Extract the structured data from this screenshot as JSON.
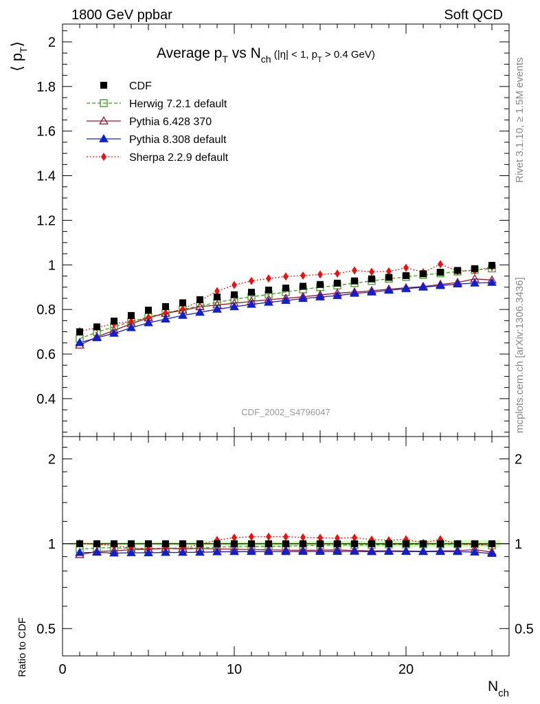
{
  "header": {
    "left": "1800 GeV ppbar",
    "right": "Soft QCD"
  },
  "side_labels": {
    "rivet": "Rivet 3.1.10, ≥ 1.5M events",
    "mcplots": "mcplots.cern.ch [arXiv:1306.3436]"
  },
  "chart_data": {
    "type": "line",
    "title": {
      "main": "Average p",
      "main_sub": "T",
      "vs": " vs N",
      "vs_sub": "ch",
      "cut_a": " (|η| < 1, p",
      "cut_sub": "T",
      "cut_b": " > 0.4 GeV)"
    },
    "analysis_label": "CDF_2002_S4796047",
    "top_panel": {
      "ylabel": "⟨ p",
      "ylabel_sub": "T",
      "ylabel_end": "⟩",
      "ylim": [
        0.23,
        2.08
      ],
      "yticks": [
        "0.4",
        "0.6",
        "0.8",
        "1",
        "1.2",
        "1.4",
        "1.6",
        "1.8",
        "2"
      ],
      "ytick_values": [
        0.4,
        0.6,
        0.8,
        1.0,
        1.2,
        1.4,
        1.6,
        1.8,
        2.0
      ]
    },
    "ratio_panel": {
      "ylabel": "Ratio to CDF",
      "ylim_log": [
        0.4,
        2.4
      ],
      "yticks": [
        "0.5",
        "1",
        "2"
      ],
      "ytick_values": [
        0.5,
        1.0,
        2.0
      ]
    },
    "x": {
      "label": "N",
      "label_sub": "ch",
      "xlim": [
        0,
        26
      ],
      "xticks": [
        "0",
        "10",
        "20"
      ],
      "xtick_values": [
        0,
        10,
        20
      ]
    },
    "x_values": [
      1,
      2,
      3,
      4,
      5,
      6,
      7,
      8,
      9,
      10,
      11,
      12,
      13,
      14,
      15,
      16,
      17,
      18,
      19,
      20,
      21,
      22,
      23,
      24,
      25
    ],
    "series": [
      {
        "name": "CDF",
        "style": "data",
        "marker": "square-filled",
        "color": "#000000",
        "values": [
          0.7,
          0.722,
          0.748,
          0.773,
          0.797,
          0.813,
          0.83,
          0.844,
          0.856,
          0.866,
          0.877,
          0.887,
          0.896,
          0.904,
          0.912,
          0.918,
          0.928,
          0.937,
          0.944,
          0.952,
          0.96,
          0.967,
          0.975,
          0.983,
          0.998
        ]
      },
      {
        "name": "Herwig 7.2.1 default",
        "style": "dashed",
        "marker": "square-open",
        "color": "#3a9a1a",
        "values": [
          0.669,
          0.698,
          0.723,
          0.745,
          0.766,
          0.784,
          0.8,
          0.816,
          0.832,
          0.846,
          0.857,
          0.867,
          0.878,
          0.89,
          0.9,
          0.908,
          0.918,
          0.928,
          0.938,
          0.946,
          0.955,
          0.962,
          0.97,
          0.977,
          0.984
        ]
      },
      {
        "name": "Pythia 6.428 370",
        "style": "solid",
        "marker": "triangle-open",
        "color": "#a0102a",
        "values": [
          0.64,
          0.677,
          0.706,
          0.736,
          0.762,
          0.783,
          0.796,
          0.812,
          0.82,
          0.828,
          0.836,
          0.844,
          0.85,
          0.857,
          0.865,
          0.873,
          0.878,
          0.884,
          0.891,
          0.897,
          0.903,
          0.912,
          0.921,
          0.937,
          0.932
        ]
      },
      {
        "name": "Pythia 8.308 default",
        "style": "solid",
        "marker": "triangle-filled",
        "color": "#1020d0",
        "values": [
          0.651,
          0.673,
          0.693,
          0.718,
          0.74,
          0.757,
          0.773,
          0.787,
          0.801,
          0.812,
          0.823,
          0.832,
          0.84,
          0.849,
          0.856,
          0.862,
          0.872,
          0.878,
          0.886,
          0.893,
          0.9,
          0.907,
          0.914,
          0.918,
          0.921
        ]
      },
      {
        "name": "Sherpa 2.2.9 default",
        "style": "dotted",
        "marker": "diamond-filled",
        "color": "#ee1010",
        "values": [
          0.702,
          0.719,
          0.736,
          0.747,
          0.762,
          0.783,
          0.801,
          0.839,
          0.882,
          0.91,
          0.928,
          0.939,
          0.948,
          0.952,
          0.957,
          0.961,
          0.975,
          0.969,
          0.971,
          0.987,
          0.967,
          1.003,
          0.972,
          0.975,
          0.99
        ]
      }
    ],
    "reference_band_color": "#ccffaa"
  }
}
